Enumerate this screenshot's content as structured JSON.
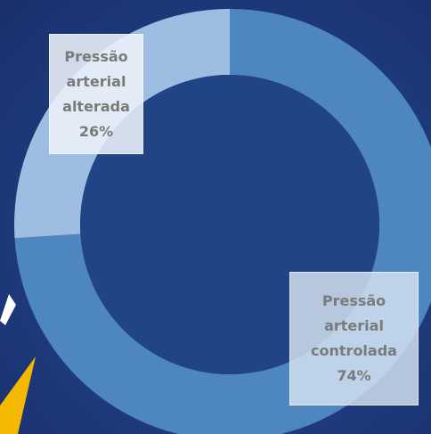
{
  "chart_data": {
    "type": "donut",
    "categories": [
      "Pressão arterial controlada",
      "Pressão arterial alterada"
    ],
    "values": [
      74,
      26
    ],
    "value_labels": [
      "74%",
      "26%"
    ],
    "colors": [
      "#4e87c0",
      "#9ebde2"
    ]
  }
}
